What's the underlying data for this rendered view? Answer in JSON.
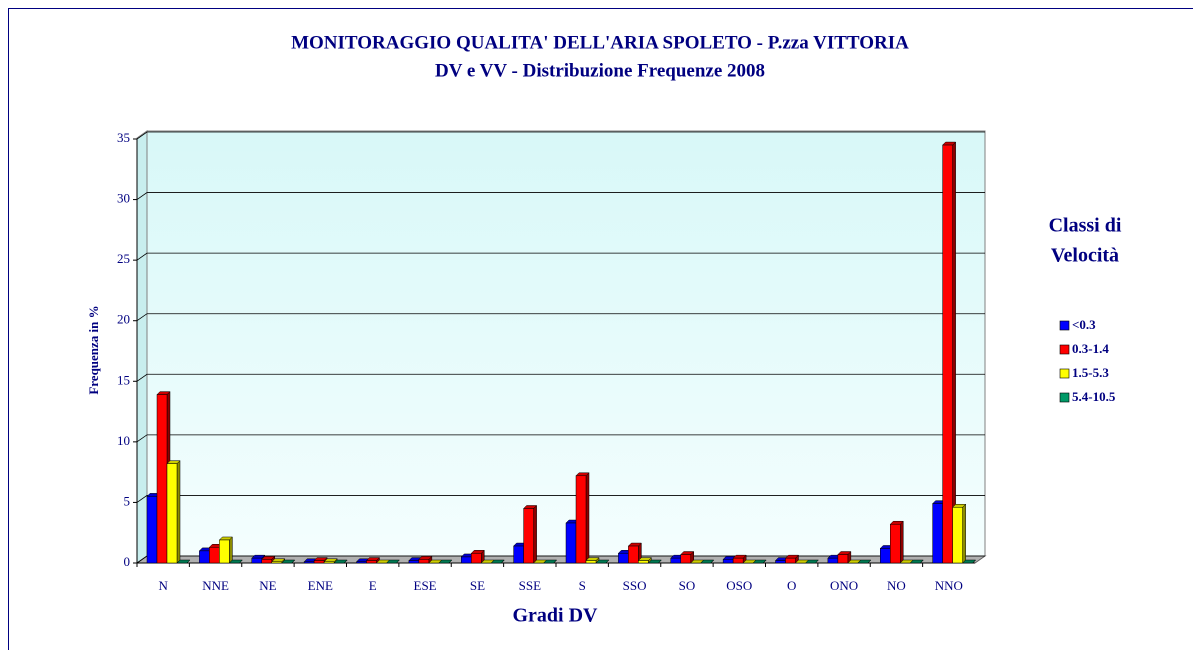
{
  "chart_data": {
    "type": "bar3d",
    "title": "MONITORAGGIO QUALITA' DELL'ARIA SPOLETO - P.zza VITTORIA",
    "subtitle": "DV e VV - Distribuzione Frequenze 2008",
    "x_label": "Gradi DV",
    "y_label": "Frequenza in %",
    "legend_title": [
      "Classi di",
      "Velocità"
    ],
    "categories": [
      "N",
      "NNE",
      "NE",
      "ENE",
      "E",
      "ESE",
      "SE",
      "SSE",
      "S",
      "SSO",
      "SO",
      "OSO",
      "O",
      "ONO",
      "NO",
      "NNO"
    ],
    "series": [
      {
        "name": "<0.3",
        "color": "#0000ff",
        "values": [
          5.5,
          1.0,
          0.4,
          0.1,
          0.1,
          0.2,
          0.5,
          1.4,
          3.3,
          0.8,
          0.4,
          0.3,
          0.2,
          0.4,
          1.2,
          4.9
        ]
      },
      {
        "name": "0.3-1.4",
        "color": "#ff0000",
        "values": [
          13.9,
          1.3,
          0.3,
          0.2,
          0.2,
          0.3,
          0.8,
          4.5,
          7.2,
          1.4,
          0.7,
          0.4,
          0.4,
          0.7,
          3.2,
          34.5
        ]
      },
      {
        "name": "1.5-5.3",
        "color": "#ffff00",
        "values": [
          8.2,
          1.9,
          0.1,
          0.1,
          0,
          0,
          0,
          0,
          0.2,
          0.2,
          0,
          0,
          0,
          0,
          0,
          4.6
        ]
      },
      {
        "name": "5.4-10.5",
        "color": "#009966",
        "values": [
          0,
          0,
          0,
          0,
          0,
          0,
          0,
          0,
          0,
          0,
          0,
          0,
          0,
          0,
          0,
          0
        ]
      }
    ],
    "ylim": [
      0,
      35
    ],
    "yticks": [
      0,
      5,
      10,
      15,
      20,
      25,
      30,
      35
    ],
    "grid": true,
    "legend": "right"
  }
}
